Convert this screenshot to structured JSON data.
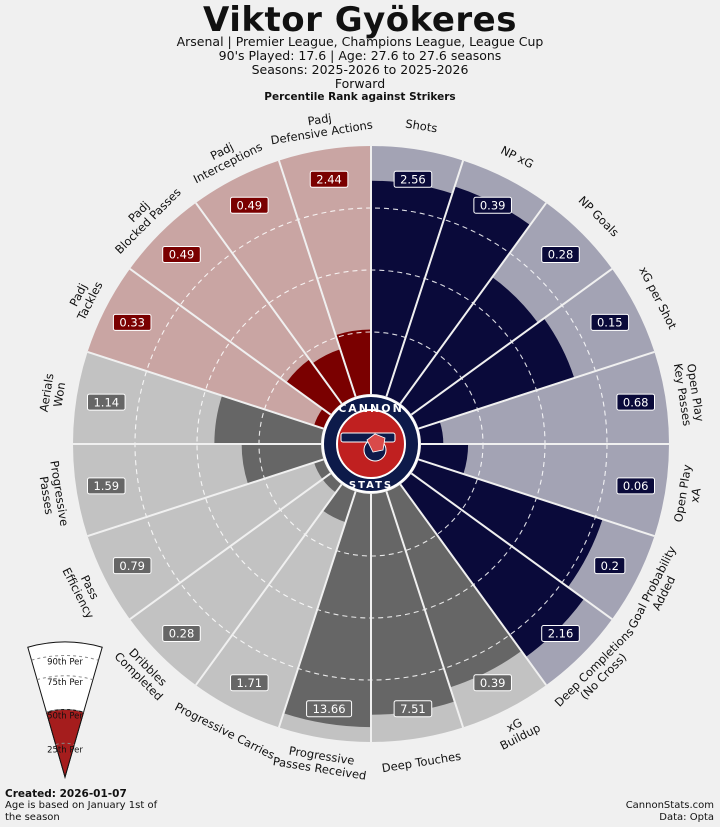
{
  "header": {
    "title": "Viktor Gyökeres",
    "competitions": "Arsenal | Premier League, Champions League, League Cup",
    "played": "90's Played: 17.6 | Age: 27.6 to 27.6 seasons",
    "seasons": "Seasons: 2025-2026 to 2025-2026",
    "position": "Forward"
  },
  "colors": {
    "attacking": "#0a0a3a",
    "attacking_bg": "#a3a3b4",
    "defending": "#7a0000",
    "defending_bg": "#c9a5a3",
    "possession": "#666666",
    "possession_bg": "#c2c2c2",
    "page_bg": "#f0f0f0",
    "logo_red": "#c02020",
    "logo_navy": "#0d1a4a"
  },
  "chart_data": {
    "type": "polar-bar",
    "title": "Percentile Rank against Strikers",
    "rlim": [
      0,
      100
    ],
    "grid_rings": [
      25,
      50,
      75
    ],
    "metrics": [
      {
        "label": "Shots",
        "value": "2.56",
        "percentile": 86,
        "group": "attacking"
      },
      {
        "label": "NP xG",
        "value": "0.39",
        "percentile": 89,
        "group": "attacking"
      },
      {
        "label": "NP Goals",
        "value": "0.28",
        "percentile": 63,
        "group": "attacking"
      },
      {
        "label": "xG per Shot",
        "value": "0.15",
        "percentile": 66,
        "group": "attacking"
      },
      {
        "label": "Open Play\nKey Passes",
        "value": "0.68",
        "percentile": 9,
        "group": "attacking"
      },
      {
        "label": "Open Play\nxA",
        "value": "0.06",
        "percentile": 19,
        "group": "attacking"
      },
      {
        "label": "Goal Probability\nAdded",
        "value": "0.2",
        "percentile": 78,
        "group": "attacking"
      },
      {
        "label": "Deep Completions\n(No Cross)",
        "value": "2.16",
        "percentile": 86,
        "group": "attacking"
      },
      {
        "label": "xG\nBuildup",
        "value": "0.39",
        "percentile": 83,
        "group": "possession"
      },
      {
        "label": "Deep Touches",
        "value": "7.51",
        "percentile": 89,
        "group": "possession"
      },
      {
        "label": "Progressive\nPasses Received",
        "value": "13.66",
        "percentile": 94,
        "group": "possession"
      },
      {
        "label": "Progressive Carries",
        "value": "1.71",
        "percentile": 13,
        "group": "possession"
      },
      {
        "label": "Dribbles\nCompleted",
        "value": "0.28",
        "percentile": 4,
        "group": "possession"
      },
      {
        "label": "Pass\nEfficiency",
        "value": "0.79",
        "percentile": 4,
        "group": "possession"
      },
      {
        "label": "Progressive\nPasses",
        "value": "1.59",
        "percentile": 32,
        "group": "possession"
      },
      {
        "label": "Aerials\nWon",
        "value": "1.14",
        "percentile": 43,
        "group": "possession"
      },
      {
        "label": "Padj\nTackles",
        "value": "0.33",
        "percentile": 4,
        "group": "defending"
      },
      {
        "label": "Padj\nBlocked Passes",
        "value": "0.49",
        "percentile": 22,
        "group": "defending"
      },
      {
        "label": "Padj\nInterceptions",
        "value": "0.49",
        "percentile": 20,
        "group": "defending"
      },
      {
        "label": "Padj\nDefensive Actions",
        "value": "2.44",
        "percentile": 26,
        "group": "defending"
      }
    ]
  },
  "legend": {
    "labels": [
      "90th Per",
      "75th Per",
      "50th Per",
      "25th Per"
    ],
    "levels": [
      90,
      75,
      50,
      25
    ]
  },
  "logo": {
    "top": "CANNON",
    "bottom": "STATS"
  },
  "footer": {
    "created": "Created: 2026-01-07",
    "age_note": "Age is based on January 1st of the season",
    "site": "CannonStats.com",
    "data": "Data: Opta"
  }
}
